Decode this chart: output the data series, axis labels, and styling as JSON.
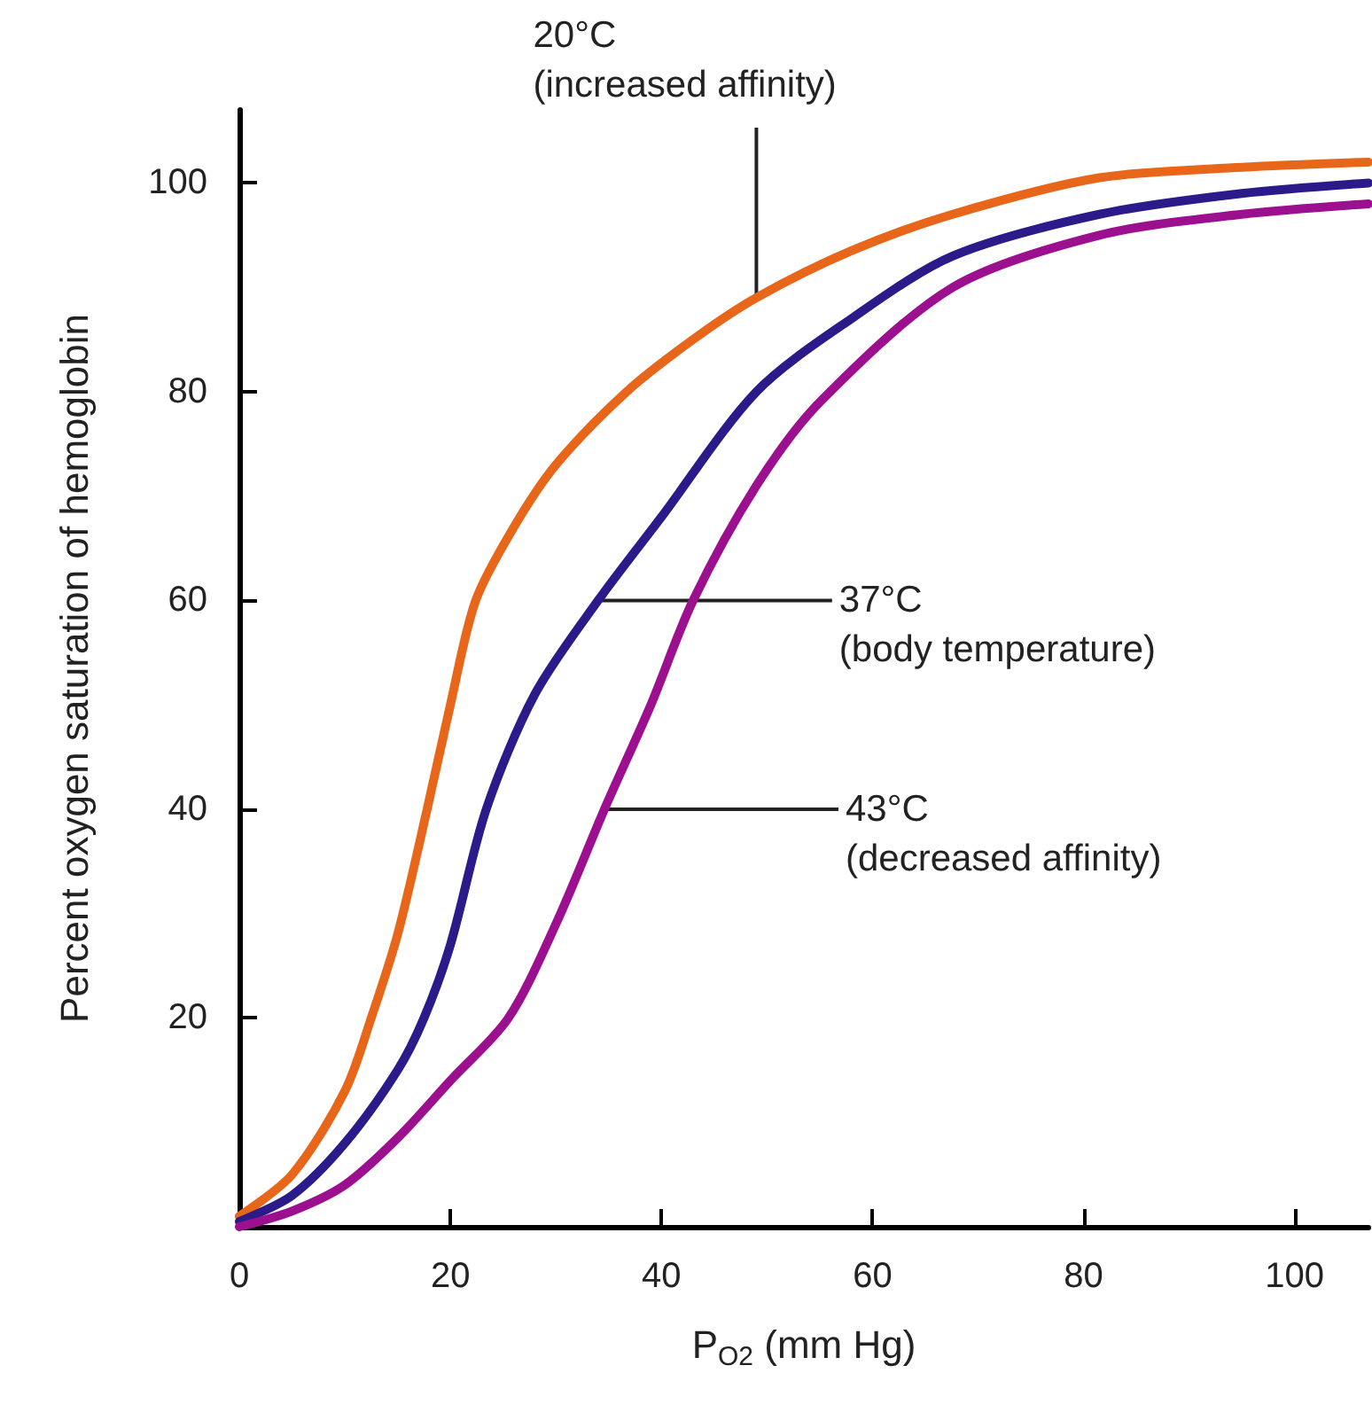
{
  "chart_data": {
    "type": "line",
    "xlabel": "P$_{O2}$ (mm Hg)",
    "ylabel": "Percent oxygen saturation of hemoglobin",
    "xlim": [
      0,
      107
    ],
    "xticks": [
      0,
      20,
      40,
      60,
      80,
      100
    ],
    "ylim": [
      0,
      107
    ],
    "yticks": [
      20,
      40,
      60,
      80,
      100
    ],
    "grid": false,
    "marker": "none",
    "line_style": "solid",
    "series": [
      {
        "color": "#e8661a",
        "x": [
          0,
          5,
          10,
          12.5,
          15,
          17.8,
          20,
          22.4,
          26,
          30,
          36.7,
          43,
          49,
          58,
          67.6,
          81.5,
          95,
          107
        ],
        "values": [
          1,
          5,
          13,
          20,
          28,
          40,
          50,
          60,
          67,
          73,
          80,
          85,
          89,
          93.5,
          97,
          100.5,
          101.5,
          102
        ]
      },
      {
        "color": "#2a1a8a",
        "x": [
          0,
          5,
          10,
          15,
          17.5,
          20,
          23.4,
          28,
          34,
          40,
          49,
          58,
          67.6,
          81.5,
          95,
          107
        ],
        "values": [
          0.5,
          3,
          8,
          15,
          20,
          27,
          40,
          51,
          60,
          68,
          80,
          87,
          93,
          97,
          99,
          100
        ]
      },
      {
        "color": "#9c1090",
        "x": [
          0,
          5,
          10,
          15,
          20,
          25.5,
          30,
          34.6,
          39,
          43,
          49,
          55,
          67.6,
          81.5,
          95,
          107
        ],
        "values": [
          0,
          1.5,
          4,
          8.5,
          14,
          20,
          29,
          40,
          50,
          60,
          71,
          79,
          90,
          95,
          97,
          98
        ]
      }
    ],
    "annotations": [
      {
        "text": "20°C\n(increased affinity)",
        "x": 49,
        "y": 89
      },
      {
        "text": "37°C\n(body temperature)",
        "x": 34,
        "y": 60
      },
      {
        "text": "43°C\n(decreased affinity)",
        "x": 34.6,
        "y": 40
      }
    ]
  }
}
